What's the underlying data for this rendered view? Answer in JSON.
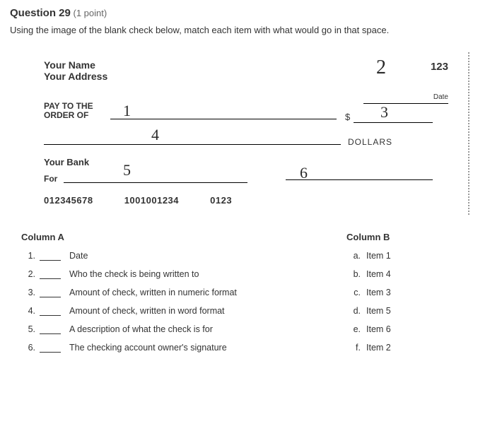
{
  "question": {
    "title_prefix": "Question 29",
    "points": "(1 point)",
    "prompt": "Using the image of the blank check below, match each item with what would go in that space."
  },
  "check": {
    "name": "Your Name",
    "address": "Your Address",
    "number": "123",
    "date_label": "Date",
    "pay_to_line1": "PAY TO THE",
    "pay_to_line2": "ORDER OF",
    "dollar_sign": "$",
    "dollars_label": "DOLLARS",
    "bank": "Your Bank",
    "for_label": "For",
    "routing": "012345678",
    "account": "1001001234",
    "checknum": "0123",
    "handwritten": {
      "1": "1",
      "2": "2",
      "3": "3",
      "4": "4",
      "5": "5",
      "6": "6"
    }
  },
  "columnA": {
    "title": "Column A",
    "rows": [
      {
        "n": "1.",
        "text": "Date"
      },
      {
        "n": "2.",
        "text": "Who the check is being written to"
      },
      {
        "n": "3.",
        "text": "Amount of check, written in numeric format"
      },
      {
        "n": "4.",
        "text": "Amount of check, written in word format"
      },
      {
        "n": "5.",
        "text": "A description of what the check is for"
      },
      {
        "n": "6.",
        "text": "The checking account owner's signature"
      }
    ]
  },
  "columnB": {
    "title": "Column B",
    "rows": [
      {
        "l": "a.",
        "text": "Item 1"
      },
      {
        "l": "b.",
        "text": "Item 4"
      },
      {
        "l": "c.",
        "text": "Item 3"
      },
      {
        "l": "d.",
        "text": "Item 5"
      },
      {
        "l": "e.",
        "text": "Item 6"
      },
      {
        "l": "f.",
        "text": "Item 2"
      }
    ]
  }
}
